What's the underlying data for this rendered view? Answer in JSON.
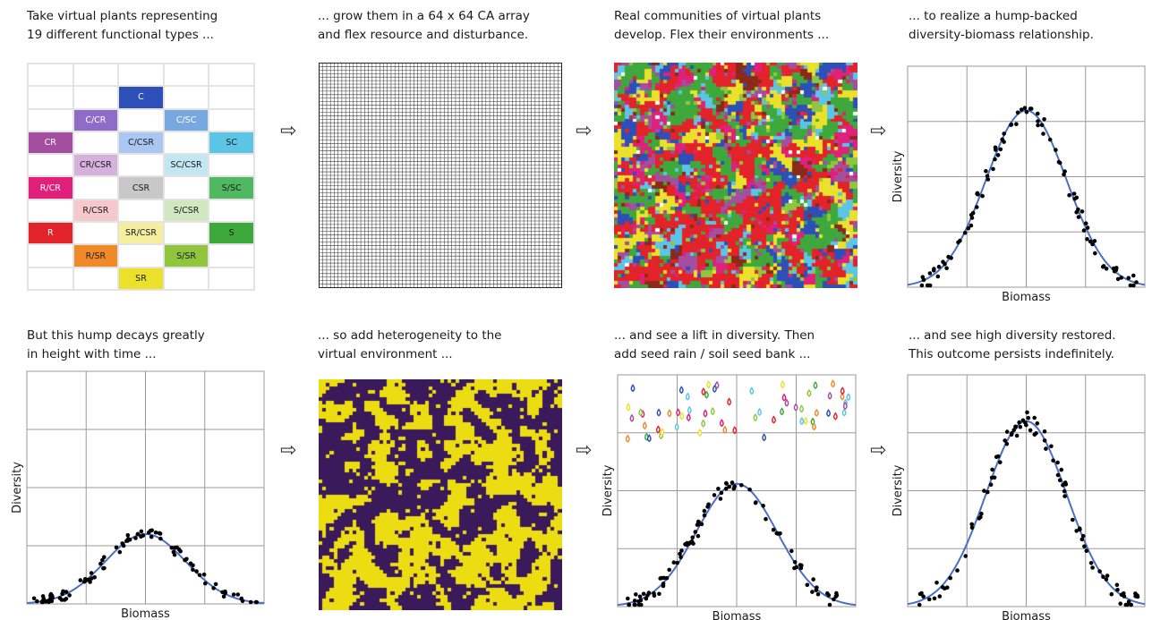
{
  "captions": [
    {
      "lines": [
        "Take virtual plants representing",
        "19 different functional types ..."
      ]
    },
    {
      "lines": [
        "... grow them in a 64 x 64 CA array",
        "and flex resource and disturbance."
      ]
    },
    {
      "lines": [
        "Real communities of virtual plants",
        "develop. Flex their environments ..."
      ]
    },
    {
      "lines": [
        "... to realize a hump-backed",
        "diversity-biomass relationship."
      ]
    },
    {
      "lines": [
        "But this hump decays greatly",
        "in height with time ..."
      ]
    },
    {
      "lines": [
        "... so add heterogeneity to the",
        "virtual environment ..."
      ]
    },
    {
      "lines": [
        "... and see a lift in diversity. Then",
        "add seed rain / soil seed bank ..."
      ]
    },
    {
      "lines": [
        "... and see high diversity restored.",
        "This outcome persists indefinitely."
      ]
    }
  ],
  "arrow_glyph": "⇨",
  "functional_types": [
    {
      "label": "C",
      "col": 3,
      "row": 1,
      "color": "#2f4fb8",
      "text_color": "#ffffff"
    },
    {
      "label": "C/CR",
      "col": 2,
      "row": 2,
      "color": "#8e6cc8",
      "text_color": "#ffffff"
    },
    {
      "label": "C/SC",
      "col": 4,
      "row": 2,
      "color": "#78a8e0",
      "text_color": "#ffffff"
    },
    {
      "label": "CR",
      "col": 1,
      "row": 3,
      "color": "#a44ea0",
      "text_color": "#ffffff"
    },
    {
      "label": "C/CSR",
      "col": 3,
      "row": 3,
      "color": "#a9c7f0",
      "text_color": "#1a1a1a"
    },
    {
      "label": "SC",
      "col": 5,
      "row": 3,
      "color": "#5cc5e5",
      "text_color": "#1a1a1a"
    },
    {
      "label": "CR/CSR",
      "col": 2,
      "row": 4,
      "color": "#d7b1de",
      "text_color": "#1a1a1a"
    },
    {
      "label": "SC/CSR",
      "col": 4,
      "row": 4,
      "color": "#c2e6f2",
      "text_color": "#1a1a1a"
    },
    {
      "label": "R/CR",
      "col": 1,
      "row": 5,
      "color": "#e0207a",
      "text_color": "#ffffff"
    },
    {
      "label": "CSR",
      "col": 3,
      "row": 5,
      "color": "#c8c8c8",
      "text_color": "#1a1a1a"
    },
    {
      "label": "S/SC",
      "col": 5,
      "row": 5,
      "color": "#4fb860",
      "text_color": "#1a1a1a"
    },
    {
      "label": "R/CSR",
      "col": 2,
      "row": 6,
      "color": "#f6c8cc",
      "text_color": "#1a1a1a"
    },
    {
      "label": "S/CSR",
      "col": 4,
      "row": 6,
      "color": "#cfe8c0",
      "text_color": "#1a1a1a"
    },
    {
      "label": "R",
      "col": 1,
      "row": 7,
      "color": "#e2232a",
      "text_color": "#ffffff"
    },
    {
      "label": "SR/CSR",
      "col": 3,
      "row": 7,
      "color": "#f4ee9e",
      "text_color": "#1a1a1a"
    },
    {
      "label": "S",
      "col": 5,
      "row": 7,
      "color": "#3fa83c",
      "text_color": "#1a1a1a"
    },
    {
      "label": "R/SR",
      "col": 2,
      "row": 8,
      "color": "#f08a28",
      "text_color": "#1a1a1a"
    },
    {
      "label": "S/SR",
      "col": 4,
      "row": 8,
      "color": "#8fc63e",
      "text_color": "#1a1a1a"
    },
    {
      "label": "SR",
      "col": 3,
      "row": 9,
      "color": "#ebe12a",
      "text_color": "#1a1a1a"
    }
  ],
  "ca_array": {
    "size": 64
  },
  "community_colors": [
    "#e2232a",
    "#3fa83c",
    "#ebe12a",
    "#2f4fb8",
    "#5cc5e5",
    "#a44ea0",
    "#e0207a",
    "#8b2a1a",
    "#8fc63e",
    "#ffffff"
  ],
  "heterogeneity_colors": [
    "#ecdc12",
    "#3a1a5a"
  ],
  "seed_colors": [
    "#e2232a",
    "#3fa83c",
    "#ebe12a",
    "#2f4fb8",
    "#5cc5e5",
    "#a44ea0",
    "#f08a28",
    "#8fc63e",
    "#e0207a"
  ],
  "chart_data": [
    {
      "type": "scatter",
      "panel": "hump-backed",
      "xlabel": "Biomass",
      "ylabel": "Diversity",
      "grid": true,
      "curve_peak": 0.8
    },
    {
      "type": "scatter",
      "panel": "decayed",
      "xlabel": "Biomass",
      "ylabel": "Diversity",
      "grid": true,
      "curve_peak": 0.3
    },
    {
      "type": "scatter",
      "panel": "lifted",
      "xlabel": "Biomass",
      "ylabel": "Diversity",
      "grid": true,
      "curve_peak": 0.53
    },
    {
      "type": "scatter",
      "panel": "restored",
      "xlabel": "Biomass",
      "ylabel": "Diversity",
      "grid": true,
      "curve_peak": 0.8
    }
  ],
  "colors": {
    "curve": "#4a6fc4",
    "points": "#000000",
    "grid": "#9a9a9a"
  }
}
